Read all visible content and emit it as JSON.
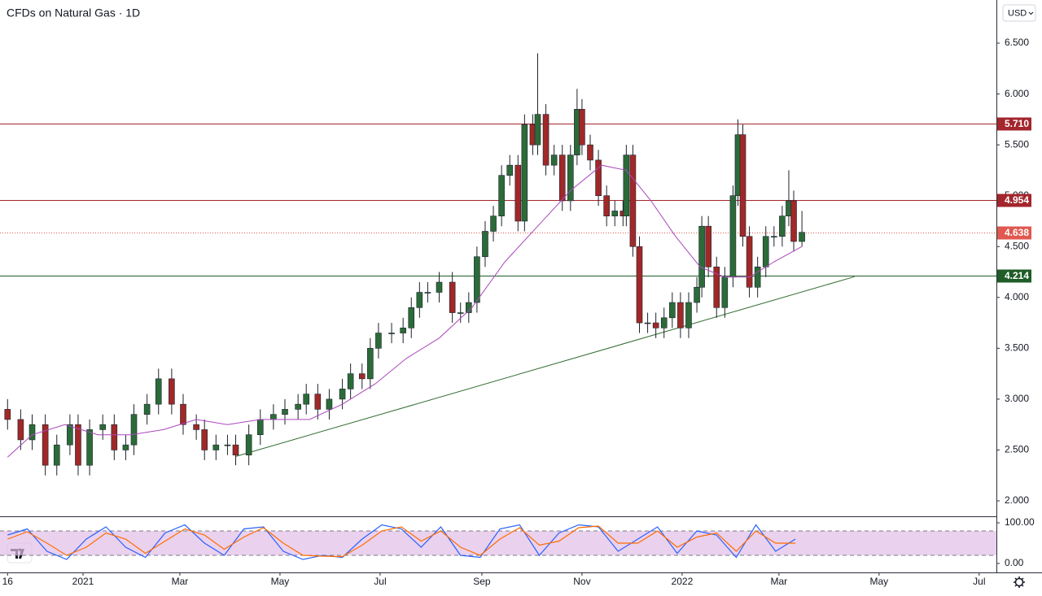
{
  "chart_data": [
    {
      "type": "candlestick",
      "title": "CFDs on Natural Gas · 1D",
      "currency_label": "USD",
      "up_color": "#2b6b39",
      "down_color": "#a02828",
      "x": [
        0,
        8,
        15,
        23,
        30,
        38,
        43,
        50,
        58,
        65,
        72,
        77,
        85,
        92,
        100,
        107,
        115,
        120,
        127,
        134,
        139,
        147,
        154,
        162,
        169,
        177,
        182,
        189,
        196,
        204,
        209,
        216,
        221,
        226,
        234,
        241,
        246,
        251,
        256,
        263,
        271,
        276,
        281,
        286,
        291,
        296,
        301,
        306,
        311,
        315,
        320,
        323,
        328,
        333,
        338,
        343,
        347,
        350,
        355,
        360,
        365,
        370,
        375,
        377,
        381,
        385,
        390,
        395,
        400,
        405,
        410,
        415,
        420,
        423,
        427,
        432,
        437,
        442,
        445,
        448,
        452,
        457,
        462,
        467,
        472,
        476,
        479,
        484
      ],
      "open": [
        2.9,
        2.8,
        2.6,
        2.75,
        2.35,
        2.55,
        2.75,
        2.35,
        2.7,
        2.75,
        2.5,
        2.55,
        2.85,
        2.95,
        3.2,
        2.95,
        2.75,
        2.7,
        2.5,
        2.55,
        2.55,
        2.45,
        2.65,
        2.8,
        2.85,
        2.9,
        2.95,
        3.05,
        2.9,
        3.0,
        3.1,
        3.25,
        3.2,
        3.5,
        3.65,
        3.65,
        3.7,
        3.9,
        4.05,
        4.05,
        4.15,
        3.85,
        3.85,
        3.95,
        4.4,
        4.65,
        4.8,
        5.2,
        5.3,
        4.75,
        5.7,
        5.5,
        5.8,
        5.3,
        5.4,
        4.95,
        5.4,
        5.85,
        5.5,
        5.35,
        5.0,
        4.8,
        4.85,
        4.8,
        5.4,
        4.5,
        3.75,
        3.75,
        3.7,
        3.8,
        3.95,
        3.7,
        3.95,
        4.1,
        4.7,
        4.3,
        3.9,
        4.2,
        5.0,
        5.6,
        4.6,
        4.1,
        4.3,
        4.6,
        4.6,
        4.8,
        4.95,
        4.55
      ],
      "high": [
        3.0,
        2.9,
        2.85,
        2.85,
        2.65,
        2.85,
        2.85,
        2.8,
        2.85,
        2.85,
        2.65,
        2.95,
        3.05,
        3.3,
        3.3,
        3.05,
        2.85,
        2.8,
        2.65,
        2.65,
        2.65,
        2.75,
        2.9,
        2.95,
        3.0,
        3.05,
        3.15,
        3.15,
        3.1,
        3.2,
        3.35,
        3.35,
        3.6,
        3.75,
        3.75,
        3.8,
        4.0,
        4.15,
        4.15,
        4.25,
        4.25,
        3.95,
        4.05,
        4.5,
        4.75,
        4.9,
        5.3,
        5.4,
        5.4,
        5.8,
        5.8,
        6.4,
        5.9,
        5.5,
        5.5,
        5.5,
        6.05,
        5.95,
        5.6,
        5.45,
        5.1,
        4.95,
        4.95,
        5.5,
        5.5,
        4.6,
        3.85,
        3.85,
        3.9,
        4.05,
        4.05,
        4.05,
        4.2,
        4.8,
        4.8,
        4.4,
        4.3,
        5.1,
        5.75,
        5.7,
        4.7,
        4.4,
        4.7,
        4.7,
        4.9,
        5.25,
        5.05,
        4.85
      ],
      "low": [
        2.7,
        2.5,
        2.5,
        2.25,
        2.25,
        2.45,
        2.25,
        2.25,
        2.6,
        2.4,
        2.4,
        2.45,
        2.75,
        2.85,
        2.85,
        2.65,
        2.6,
        2.4,
        2.4,
        2.45,
        2.35,
        2.35,
        2.55,
        2.7,
        2.75,
        2.8,
        2.85,
        2.8,
        2.8,
        2.9,
        3.0,
        3.1,
        3.1,
        3.4,
        3.55,
        3.55,
        3.6,
        3.8,
        3.95,
        3.95,
        3.75,
        3.75,
        3.75,
        3.85,
        4.3,
        4.55,
        4.7,
        5.1,
        4.65,
        4.65,
        5.4,
        5.4,
        5.2,
        5.2,
        4.85,
        4.85,
        5.3,
        5.4,
        5.25,
        4.9,
        4.7,
        4.7,
        4.7,
        4.7,
        4.4,
        3.65,
        3.65,
        3.6,
        3.6,
        3.7,
        3.6,
        3.6,
        3.85,
        4.0,
        4.2,
        3.8,
        3.8,
        4.1,
        4.9,
        4.5,
        4.0,
        4.0,
        4.2,
        4.5,
        4.5,
        4.7,
        4.45,
        4.5
      ],
      "close": [
        2.8,
        2.6,
        2.75,
        2.35,
        2.55,
        2.75,
        2.35,
        2.7,
        2.75,
        2.5,
        2.55,
        2.85,
        2.95,
        3.2,
        2.95,
        2.75,
        2.7,
        2.5,
        2.55,
        2.55,
        2.45,
        2.65,
        2.8,
        2.85,
        2.9,
        2.95,
        3.05,
        2.9,
        3.0,
        3.1,
        3.25,
        3.2,
        3.5,
        3.65,
        3.65,
        3.7,
        3.9,
        4.05,
        4.05,
        4.15,
        3.85,
        3.85,
        3.95,
        4.4,
        4.65,
        4.8,
        5.2,
        5.3,
        4.75,
        5.7,
        5.5,
        5.8,
        5.3,
        5.4,
        4.95,
        5.4,
        5.85,
        5.5,
        5.35,
        5.0,
        4.8,
        4.85,
        4.8,
        5.4,
        4.5,
        3.75,
        3.75,
        3.7,
        3.8,
        3.95,
        3.7,
        3.95,
        4.1,
        4.7,
        4.3,
        3.9,
        4.2,
        5.0,
        5.6,
        4.6,
        4.1,
        4.3,
        4.6,
        4.6,
        4.8,
        4.95,
        4.55,
        4.64
      ],
      "moving_average": {
        "color": "#ab47bc",
        "x": [
          0,
          15,
          35,
          55,
          75,
          95,
          115,
          134,
          154,
          169,
          184,
          204,
          224,
          243,
          263,
          283,
          303,
          323,
          343,
          362,
          377,
          392,
          407,
          422,
          437,
          452,
          467,
          484
        ],
        "values": [
          2.43,
          2.65,
          2.75,
          2.65,
          2.65,
          2.7,
          2.8,
          2.75,
          2.8,
          2.8,
          2.8,
          2.95,
          3.15,
          3.4,
          3.6,
          3.9,
          4.35,
          4.7,
          5.05,
          5.3,
          5.25,
          4.95,
          4.6,
          4.3,
          4.2,
          4.2,
          4.35,
          4.5
        ]
      },
      "trendline": {
        "color": "#2e6b2e",
        "x": [
          139,
          516
        ],
        "values": [
          2.436,
          4.204
        ]
      },
      "levels": [
        {
          "value": 5.71,
          "label": "5.710",
          "color": "#a3262c",
          "style": "solid"
        },
        {
          "value": 4.954,
          "label": "4.954",
          "color": "#a3262c",
          "style": "solid"
        },
        {
          "value": 4.638,
          "label": "4.638",
          "color": "#e0584f",
          "style": "dotted"
        },
        {
          "value": 4.214,
          "label": "4.214",
          "color": "#1f5c27",
          "style": "solid"
        }
      ],
      "xlim": [
        -4.6,
        602.5
      ],
      "xticks": [
        {
          "value": 0,
          "label": "16"
        },
        {
          "value": 46,
          "label": "2021"
        },
        {
          "value": 105,
          "label": "Mar"
        },
        {
          "value": 166,
          "label": "May"
        },
        {
          "value": 227,
          "label": "Jul"
        },
        {
          "value": 289,
          "label": "Sep"
        },
        {
          "value": 350,
          "label": "Nov"
        },
        {
          "value": 411,
          "label": "2022"
        },
        {
          "value": 470,
          "label": "Mar"
        },
        {
          "value": 531,
          "label": "May"
        },
        {
          "value": 592,
          "label": "Jul"
        }
      ],
      "ylim": [
        1.848,
        6.924
      ],
      "yticks": [
        {
          "value": 2,
          "label": "2.000"
        },
        {
          "value": 2.5,
          "label": "2.500"
        },
        {
          "value": 3,
          "label": "3.000"
        },
        {
          "value": 3.5,
          "label": "3.500"
        },
        {
          "value": 4,
          "label": "4.000"
        },
        {
          "value": 4.5,
          "label": "4.500"
        },
        {
          "value": 5,
          "label": "5.000"
        },
        {
          "value": 5.5,
          "label": "5.500"
        },
        {
          "value": 6,
          "label": "6.000"
        },
        {
          "value": 6.5,
          "label": "6.500"
        }
      ],
      "grid": false
    },
    {
      "type": "line",
      "x": [
        0,
        12,
        24,
        36,
        48,
        60,
        72,
        84,
        96,
        108,
        120,
        132,
        144,
        156,
        168,
        180,
        192,
        204,
        216,
        228,
        240,
        252,
        264,
        276,
        288,
        300,
        312,
        324,
        336,
        348,
        360,
        372,
        384,
        396,
        408,
        420,
        432,
        444,
        456,
        468,
        480
      ],
      "series": [
        {
          "color": "#2962ff",
          "values": [
            70,
            85,
            30,
            10,
            60,
            90,
            40,
            15,
            75,
            95,
            50,
            20,
            85,
            90,
            30,
            10,
            20,
            15,
            60,
            95,
            85,
            40,
            90,
            20,
            15,
            85,
            95,
            20,
            75,
            95,
            90,
            30,
            60,
            90,
            25,
            80,
            70,
            15,
            95,
            30,
            60
          ]
        },
        {
          "color": "#ff6d00",
          "values": [
            60,
            78,
            50,
            20,
            40,
            75,
            60,
            25,
            55,
            85,
            70,
            35,
            65,
            88,
            50,
            20,
            18,
            17,
            45,
            80,
            90,
            55,
            80,
            40,
            20,
            60,
            88,
            45,
            55,
            88,
            92,
            50,
            50,
            80,
            40,
            65,
            75,
            30,
            80,
            50,
            50
          ]
        }
      ],
      "bands": [
        80,
        20
      ],
      "band_color": "#e1bee7",
      "ylim": [
        -22,
        114
      ],
      "yticks": [
        {
          "value": 100,
          "label": "100.00"
        },
        {
          "value": 0,
          "label": "0.00"
        }
      ]
    }
  ]
}
